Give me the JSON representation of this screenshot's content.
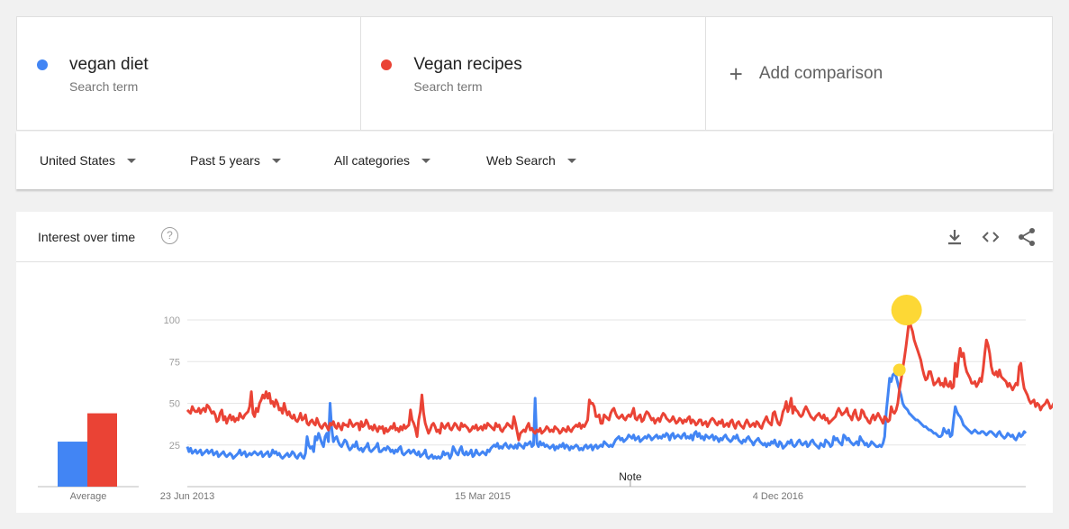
{
  "terms": [
    {
      "name": "vegan diet",
      "sub": "Search term",
      "color": "#4285f4"
    },
    {
      "name": "Vegan recipes",
      "sub": "Search term",
      "color": "#ea4335"
    }
  ],
  "add_comparison": "Add comparison",
  "filters": {
    "region": "United States",
    "time": "Past 5 years",
    "category": "All categories",
    "search_type": "Web Search"
  },
  "card": {
    "title": "Interest over time",
    "help": "?",
    "actions": [
      "download-icon",
      "embed-icon",
      "share-icon"
    ]
  },
  "chart_data": {
    "type": "line",
    "ylim": [
      0,
      100
    ],
    "yticks": [
      25,
      50,
      75,
      100
    ],
    "x_tick_labels": [
      "23 Jun 2013",
      "15 Mar 2015",
      "4 Dec 2016"
    ],
    "note_label": "Note",
    "average_label": "Average",
    "averages": [
      {
        "name": "vegan diet",
        "value": 27
      },
      {
        "name": "Vegan recipes",
        "value": 44
      }
    ],
    "annotation_color": "#fdd835",
    "series": [
      {
        "name": "vegan diet",
        "color": "#4285f4",
        "values": [
          24,
          21,
          23,
          20,
          21,
          22,
          20,
          21,
          22,
          19,
          20,
          21,
          22,
          20,
          21,
          22,
          19,
          20,
          21,
          18,
          19,
          20,
          21,
          19,
          18,
          19,
          20,
          19,
          17,
          18,
          19,
          20,
          22,
          19,
          20,
          21,
          18,
          19,
          20,
          19,
          20,
          21,
          20,
          19,
          20,
          21,
          18,
          19,
          20,
          21,
          18,
          19,
          22,
          20,
          21,
          19,
          20,
          18,
          17,
          18,
          19,
          20,
          18,
          19,
          21,
          20,
          18,
          17,
          19,
          20,
          18,
          17,
          20,
          30,
          25,
          23,
          24,
          21,
          30,
          28,
          32,
          29,
          26,
          24,
          30,
          32,
          27,
          50,
          35,
          27,
          29,
          30,
          27,
          25,
          24,
          26,
          28,
          27,
          24,
          22,
          23,
          25,
          24,
          27,
          23,
          22,
          23,
          21,
          23,
          24,
          26,
          22,
          21,
          22,
          23,
          24,
          26,
          21,
          21,
          22,
          23,
          22,
          24,
          23,
          21,
          22,
          20,
          22,
          21,
          23,
          24,
          20,
          19,
          20,
          21,
          22,
          20,
          21,
          22,
          20,
          19,
          21,
          18,
          19,
          20,
          22,
          18,
          17,
          18,
          19,
          17,
          18,
          17,
          18,
          17,
          18,
          21,
          19,
          20,
          20,
          17,
          19,
          24,
          22,
          20,
          19,
          22,
          24,
          20,
          19,
          21,
          19,
          20,
          22,
          18,
          19,
          22,
          20,
          19,
          20,
          21,
          20,
          19,
          22,
          21,
          23,
          24,
          25,
          24,
          26,
          23,
          24,
          23,
          25,
          26,
          24,
          23,
          25,
          24,
          23,
          25,
          23,
          26,
          25,
          24,
          23,
          26,
          25,
          26,
          27,
          24,
          25,
          53,
          26,
          24,
          27,
          25,
          26,
          24,
          25,
          24,
          23,
          24,
          25,
          22,
          24,
          23,
          25,
          24,
          26,
          23,
          25,
          24,
          22,
          24,
          23,
          24,
          25,
          24,
          22,
          23,
          22,
          24,
          25,
          23,
          24,
          25,
          22,
          24,
          25,
          23,
          24,
          25,
          24,
          27,
          26,
          25,
          24,
          25,
          24,
          26,
          28,
          29,
          30,
          28,
          29,
          27,
          28,
          29,
          31,
          30,
          29,
          31,
          28,
          29,
          30,
          27,
          28,
          29,
          30,
          29,
          31,
          30,
          28,
          29,
          30,
          31,
          29,
          30,
          29,
          31,
          30,
          32,
          31,
          28,
          31,
          32,
          29,
          30,
          31,
          30,
          29,
          31,
          32,
          29,
          30,
          29,
          31,
          28,
          32,
          33,
          30,
          32,
          29,
          30,
          28,
          31,
          30,
          29,
          30,
          31,
          28,
          30,
          29,
          27,
          29,
          28,
          30,
          31,
          29,
          28,
          27,
          28,
          30,
          29,
          31,
          28,
          27,
          26,
          28,
          27,
          29,
          30,
          28,
          27,
          25,
          27,
          28,
          29,
          27,
          26,
          25,
          26,
          24,
          26,
          25,
          27,
          26,
          28,
          25,
          24,
          27,
          26,
          23,
          24,
          25,
          27,
          26,
          28,
          25,
          24,
          25,
          27,
          28,
          26,
          25,
          26,
          27,
          24,
          25,
          27,
          28,
          26,
          25,
          24,
          23,
          26,
          25,
          24,
          28,
          27,
          26,
          24,
          25,
          30,
          28,
          29,
          27,
          26,
          25,
          31,
          30,
          28,
          29,
          27,
          26,
          25,
          26,
          27,
          25,
          30,
          28,
          27,
          25,
          26,
          24,
          25,
          27,
          26,
          25,
          24,
          24,
          25,
          24,
          26,
          30,
          45,
          55,
          65,
          63,
          67,
          68,
          66,
          62,
          58,
          55,
          50,
          48,
          47,
          46,
          44,
          43,
          42,
          41,
          40,
          40,
          39,
          38,
          37,
          36,
          36,
          35,
          34,
          34,
          33,
          32,
          32,
          31,
          30,
          30,
          31,
          35,
          33,
          32,
          34,
          30,
          31,
          40,
          48,
          45,
          43,
          42,
          40,
          37,
          36,
          35,
          34,
          33,
          32,
          33,
          34,
          33,
          32,
          32,
          33,
          33,
          32,
          31,
          32,
          33,
          33,
          32,
          31,
          30,
          32,
          33,
          31,
          30,
          29,
          30,
          32,
          31,
          30,
          31,
          29,
          28,
          30,
          32,
          30,
          31,
          33,
          32
        ]
      },
      {
        "name": "Vegan recipes",
        "color": "#ea4335",
        "values": [
          46,
          45,
          44,
          48,
          46,
          45,
          45,
          47,
          44,
          46,
          47,
          45,
          49,
          48,
          46,
          44,
          45,
          43,
          39,
          40,
          44,
          46,
          40,
          42,
          38,
          41,
          43,
          40,
          42,
          39,
          41,
          40,
          44,
          42,
          41,
          43,
          44,
          45,
          48,
          57,
          44,
          42,
          47,
          45,
          50,
          52,
          55,
          53,
          57,
          53,
          56,
          50,
          51,
          48,
          52,
          50,
          46,
          47,
          44,
          50,
          46,
          43,
          45,
          42,
          41,
          43,
          40,
          39,
          41,
          44,
          40,
          41,
          43,
          38,
          37,
          39,
          40,
          38,
          37,
          41,
          38,
          36,
          35,
          37,
          38,
          36,
          34,
          38,
          37,
          39,
          36,
          35,
          38,
          36,
          34,
          38,
          37,
          37,
          36,
          40,
          38,
          36,
          37,
          38,
          38,
          34,
          39,
          36,
          37,
          40,
          38,
          35,
          36,
          34,
          37,
          35,
          33,
          36,
          35,
          36,
          32,
          35,
          33,
          34,
          36,
          35,
          38,
          34,
          35,
          33,
          36,
          34,
          37,
          35,
          36,
          37,
          46,
          40,
          38,
          35,
          30,
          40,
          45,
          55,
          44,
          38,
          35,
          32,
          34,
          37,
          38,
          36,
          33,
          34,
          32,
          38,
          36,
          35,
          37,
          38,
          35,
          34,
          36,
          38,
          37,
          35,
          34,
          38,
          36,
          37,
          36,
          35,
          33,
          34,
          36,
          35,
          37,
          34,
          35,
          36,
          34,
          37,
          35,
          38,
          37,
          36,
          35,
          34,
          38,
          36,
          37,
          34,
          33,
          35,
          36,
          38,
          37,
          36,
          35,
          42,
          38,
          33,
          28,
          32,
          33,
          34,
          33,
          36,
          38,
          34,
          35,
          33,
          32,
          34,
          33,
          35,
          32,
          33,
          34,
          36,
          35,
          33,
          34,
          33,
          36,
          35,
          34,
          32,
          33,
          35,
          34,
          33,
          36,
          34,
          33,
          35,
          36,
          37,
          36,
          38,
          35,
          37,
          36,
          38,
          40,
          52,
          50,
          50,
          48,
          42,
          42,
          43,
          38,
          38,
          43,
          42,
          41,
          40,
          44,
          46,
          47,
          44,
          42,
          41,
          42,
          43,
          41,
          40,
          42,
          43,
          42,
          44,
          47,
          41,
          40,
          42,
          43,
          39,
          40,
          43,
          45,
          44,
          42,
          40,
          41,
          38,
          40,
          41,
          39,
          42,
          44,
          43,
          41,
          40,
          39,
          40,
          42,
          40,
          38,
          39,
          41,
          40,
          38,
          40,
          39,
          41,
          42,
          38,
          40,
          39,
          37,
          38,
          40,
          40,
          37,
          38,
          39,
          36,
          38,
          40,
          41,
          40,
          38,
          37,
          39,
          38,
          40,
          36,
          37,
          38,
          36,
          39,
          40,
          37,
          35,
          38,
          39,
          37,
          36,
          35,
          38,
          40,
          38,
          36,
          37,
          38,
          36,
          39,
          38,
          36,
          35,
          38,
          40,
          42,
          39,
          38,
          37,
          44,
          45,
          41,
          38,
          37,
          40,
          45,
          47,
          51,
          45,
          48,
          53,
          44,
          48,
          46,
          45,
          43,
          42,
          43,
          46,
          48,
          46,
          44,
          42,
          41,
          40,
          42,
          43,
          44,
          42,
          41,
          43,
          40,
          41,
          38,
          39,
          40,
          41,
          42,
          45,
          47,
          45,
          43,
          44,
          45,
          47,
          43,
          42,
          40,
          44,
          46,
          42,
          40,
          41,
          46,
          45,
          42,
          41,
          39,
          38,
          41,
          43,
          40,
          42,
          44,
          42,
          40,
          38,
          42,
          41,
          39,
          40,
          48,
          45,
          44,
          46,
          50,
          58,
          64,
          71,
          77,
          84,
          92,
          100,
          96,
          93,
          88,
          85,
          82,
          79,
          76,
          71,
          67,
          64,
          65,
          69,
          69,
          65,
          61,
          62,
          63,
          65,
          61,
          62,
          60,
          65,
          61,
          60,
          63,
          59,
          60,
          74,
          66,
          76,
          83,
          78,
          80,
          73,
          69,
          67,
          65,
          62,
          62,
          63,
          60,
          62,
          65,
          63,
          70,
          80,
          88,
          85,
          80,
          72,
          68,
          67,
          69,
          66,
          70,
          66,
          65,
          64,
          63,
          60,
          62,
          60,
          58,
          60,
          62,
          61,
          72,
          74,
          65,
          59,
          57,
          55,
          52,
          50,
          51,
          52,
          48,
          50,
          49,
          46,
          48,
          49,
          50,
          52,
          50,
          47,
          48,
          50,
          51,
          50
        ]
      }
    ]
  }
}
